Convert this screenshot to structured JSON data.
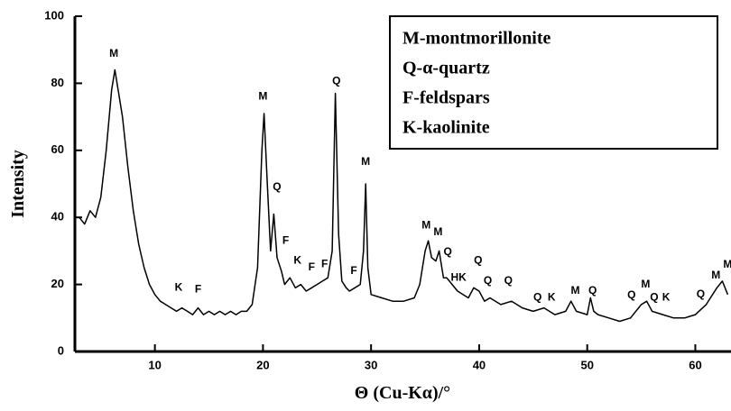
{
  "chart_data": {
    "type": "line",
    "xlabel": "Θ (Cu-Kα)/°",
    "ylabel": "Intensity",
    "xlim": [
      2.6,
      63.3
    ],
    "ylim": [
      0,
      100
    ],
    "xticks": [
      10,
      20,
      30,
      40,
      50,
      60
    ],
    "yticks": [
      0,
      20,
      40,
      60,
      80,
      100
    ],
    "color": "#000000",
    "x": [
      3.0,
      3.5,
      4.0,
      4.5,
      5.0,
      5.5,
      6.0,
      6.3,
      6.6,
      7.0,
      7.5,
      8.0,
      8.5,
      9.0,
      9.5,
      10,
      10.5,
      11,
      11.5,
      12,
      12.5,
      13,
      13.5,
      14,
      14.5,
      15,
      15.5,
      16,
      16.5,
      17,
      17.5,
      18,
      18.5,
      19,
      19.5,
      19.9,
      20.1,
      20.4,
      20.7,
      21.0,
      21.3,
      21.7,
      22.0,
      22.5,
      23,
      23.5,
      24,
      24.5,
      25,
      25.5,
      26,
      26.4,
      26.7,
      27.0,
      27.3,
      27.7,
      28,
      28.5,
      29,
      29.3,
      29.5,
      29.7,
      30,
      31,
      32,
      33,
      34,
      34.5,
      35,
      35.3,
      35.6,
      36,
      36.3,
      36.7,
      37,
      37.5,
      38,
      38.5,
      39,
      39.5,
      40,
      40.5,
      41,
      42,
      43,
      44,
      45,
      46,
      47,
      48,
      48.5,
      49,
      50,
      50.3,
      50.6,
      51,
      52,
      53,
      54,
      55,
      55.5,
      56,
      57,
      58,
      59,
      60,
      61,
      62,
      62.5,
      63
    ],
    "values": [
      40,
      38,
      42,
      40,
      46,
      60,
      78,
      84,
      78,
      70,
      55,
      42,
      32,
      25,
      20,
      17,
      15,
      14,
      13,
      12,
      13,
      12,
      11,
      13,
      11,
      12,
      11,
      12,
      11,
      12,
      11,
      12,
      12,
      14,
      25,
      60,
      71,
      50,
      30,
      41,
      28,
      24,
      20,
      22,
      19,
      20,
      18,
      19,
      20,
      21,
      22,
      30,
      77,
      35,
      21,
      19,
      18,
      19,
      20,
      30,
      50,
      25,
      17,
      16,
      15,
      15,
      16,
      20,
      30,
      33,
      28,
      27,
      30,
      22,
      22,
      20,
      18,
      17,
      16,
      19,
      18,
      15,
      16,
      14,
      15,
      13,
      12,
      13,
      11,
      12,
      15,
      12,
      11,
      16,
      12,
      11,
      10,
      9,
      10,
      14,
      15,
      12,
      11,
      10,
      10,
      11,
      14,
      19,
      21,
      17
    ],
    "annotations": [
      {
        "text": "M",
        "x": 6.2,
        "y": 88.7
      },
      {
        "text": "M",
        "x": 20.0,
        "y": 76
      },
      {
        "text": "Q",
        "x": 26.8,
        "y": 80.6
      },
      {
        "text": "M",
        "x": 29.5,
        "y": 56.5
      },
      {
        "text": "Q",
        "x": 21.3,
        "y": 49
      },
      {
        "text": "F",
        "x": 22.1,
        "y": 33
      },
      {
        "text": "K",
        "x": 23.2,
        "y": 27
      },
      {
        "text": "F",
        "x": 24.5,
        "y": 25
      },
      {
        "text": "F",
        "x": 25.7,
        "y": 26
      },
      {
        "text": "F",
        "x": 28.4,
        "y": 24
      },
      {
        "text": "K",
        "x": 12.2,
        "y": 19
      },
      {
        "text": "F",
        "x": 14.0,
        "y": 18.5
      },
      {
        "text": "M",
        "x": 35.1,
        "y": 37.6
      },
      {
        "text": "M",
        "x": 36.2,
        "y": 35.5
      },
      {
        "text": "Q",
        "x": 37.1,
        "y": 29.6
      },
      {
        "text": "HK",
        "x": 38.1,
        "y": 22
      },
      {
        "text": "Q",
        "x": 39.9,
        "y": 27
      },
      {
        "text": "Q",
        "x": 40.8,
        "y": 21
      },
      {
        "text": "Q",
        "x": 42.7,
        "y": 21
      },
      {
        "text": "Q",
        "x": 45.4,
        "y": 16
      },
      {
        "text": "K",
        "x": 46.7,
        "y": 16
      },
      {
        "text": "M",
        "x": 48.9,
        "y": 18
      },
      {
        "text": "Q",
        "x": 50.5,
        "y": 18
      },
      {
        "text": "Q",
        "x": 54.1,
        "y": 16.7
      },
      {
        "text": "M",
        "x": 55.4,
        "y": 20
      },
      {
        "text": "Q",
        "x": 56.2,
        "y": 16
      },
      {
        "text": "K",
        "x": 57.3,
        "y": 16
      },
      {
        "text": "Q",
        "x": 60.5,
        "y": 17
      },
      {
        "text": "M",
        "x": 61.9,
        "y": 22.6
      },
      {
        "text": "M",
        "x": 63.0,
        "y": 25.8
      }
    ],
    "legend_items": [
      "M-montmorillonite",
      "Q-α-quartz",
      "F-feldspars",
      "K-kaolinite"
    ]
  }
}
